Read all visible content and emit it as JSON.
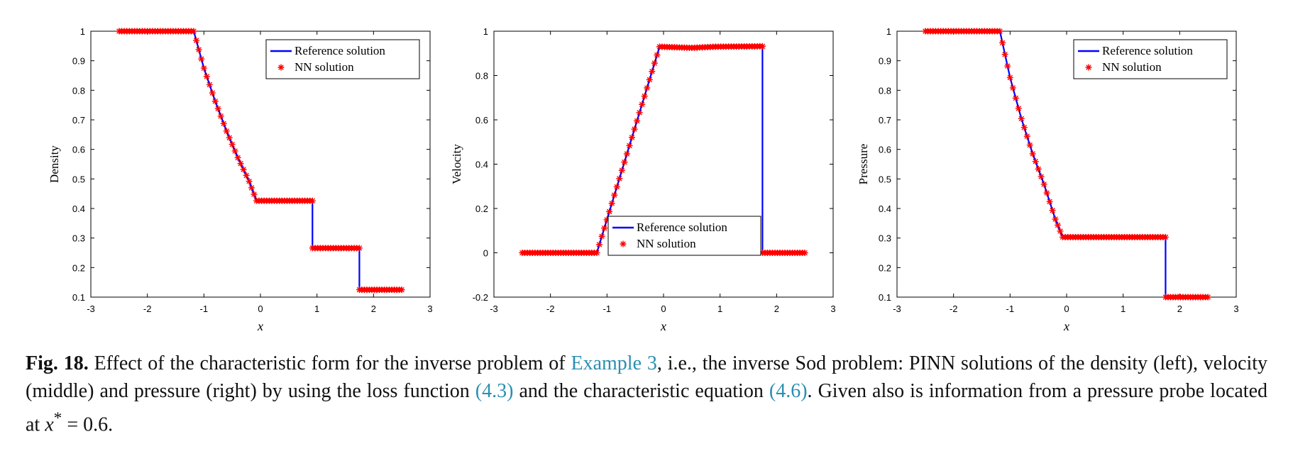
{
  "chart_data": [
    {
      "type": "line",
      "panel": "left",
      "title": "",
      "xlabel": "x",
      "ylabel": "Density",
      "xlim": [
        -3,
        3
      ],
      "ylim": [
        0.1,
        1
      ],
      "xticks": [
        "-3",
        "-2",
        "-1",
        "0",
        "1",
        "2",
        "3"
      ],
      "yticks": [
        "0.1",
        "0.2",
        "0.3",
        "0.4",
        "0.5",
        "0.6",
        "0.7",
        "0.8",
        "0.9",
        "1"
      ],
      "legend": {
        "position": "top-right",
        "entries": [
          "Reference  solution",
          "NN  solution"
        ]
      },
      "series": [
        {
          "name": "Reference  solution",
          "style": "line",
          "color": "#0000ff",
          "x": [
            -2.5,
            -1.18,
            -1.0,
            -0.8,
            -0.6,
            -0.4,
            -0.2,
            -0.07,
            0.92,
            0.92,
            1.75,
            1.75,
            2.5
          ],
          "y": [
            1.0,
            1.0,
            0.875,
            0.763,
            0.662,
            0.572,
            0.492,
            0.426,
            0.426,
            0.266,
            0.266,
            0.125,
            0.125
          ]
        },
        {
          "name": "NN  solution",
          "style": "markers",
          "marker": "*",
          "color": "#ff0000",
          "x": [
            -2.5,
            -1.18,
            -1.0,
            -0.8,
            -0.6,
            -0.4,
            -0.2,
            -0.07,
            0.92,
            0.92,
            1.75,
            1.75,
            2.5
          ],
          "y": [
            1.0,
            1.0,
            0.875,
            0.763,
            0.662,
            0.572,
            0.492,
            0.426,
            0.426,
            0.266,
            0.266,
            0.125,
            0.125
          ]
        }
      ]
    },
    {
      "type": "line",
      "panel": "middle",
      "title": "",
      "xlabel": "x",
      "ylabel": "Velocity",
      "xlim": [
        -3,
        3
      ],
      "ylim": [
        -0.2,
        1
      ],
      "xticks": [
        "-3",
        "-2",
        "-1",
        "0",
        "1",
        "2",
        "3"
      ],
      "yticks": [
        "-0.2",
        "0",
        "0.2",
        "0.4",
        "0.6",
        "0.8",
        "1"
      ],
      "legend": {
        "position": "bottom-right",
        "entries": [
          "Reference  solution",
          "NN  solution"
        ]
      },
      "series": [
        {
          "name": "Reference  solution",
          "style": "line",
          "color": "#0000ff",
          "x": [
            -2.5,
            -1.18,
            -0.07,
            0.5,
            0.92,
            1.75,
            1.75,
            2.5
          ],
          "y": [
            0.0,
            0.0,
            0.93,
            0.925,
            0.93,
            0.932,
            0.0,
            0.0
          ]
        },
        {
          "name": "NN  solution",
          "style": "markers",
          "marker": "*",
          "color": "#ff0000",
          "x": [
            -2.5,
            -1.18,
            -0.07,
            0.5,
            0.92,
            1.75,
            1.75,
            2.5
          ],
          "y": [
            0.0,
            0.0,
            0.93,
            0.925,
            0.93,
            0.932,
            0.0,
            0.0
          ]
        }
      ]
    },
    {
      "type": "line",
      "panel": "right",
      "title": "",
      "xlabel": "x",
      "ylabel": "Pressure",
      "xlim": [
        -3,
        3
      ],
      "ylim": [
        0.1,
        1
      ],
      "xticks": [
        "-3",
        "-2",
        "-1",
        "0",
        "1",
        "2",
        "3"
      ],
      "yticks": [
        "0.1",
        "0.2",
        "0.3",
        "0.4",
        "0.5",
        "0.6",
        "0.7",
        "0.8",
        "0.9",
        "1"
      ],
      "legend": {
        "position": "top-right",
        "entries": [
          "Reference  solution",
          "NN  solution"
        ]
      },
      "series": [
        {
          "name": "Reference  solution",
          "style": "line",
          "color": "#0000ff",
          "x": [
            -2.5,
            -1.18,
            -1.0,
            -0.8,
            -0.6,
            -0.4,
            -0.2,
            -0.07,
            1.75,
            1.75,
            2.5
          ],
          "y": [
            1.0,
            1.0,
            0.843,
            0.704,
            0.585,
            0.482,
            0.364,
            0.303,
            0.303,
            0.1,
            0.1
          ]
        },
        {
          "name": "NN  solution",
          "style": "markers",
          "marker": "*",
          "color": "#ff0000",
          "x": [
            -2.5,
            -1.18,
            -1.0,
            -0.8,
            -0.6,
            -0.4,
            -0.2,
            -0.07,
            1.75,
            1.75,
            2.5
          ],
          "y": [
            1.0,
            1.0,
            0.843,
            0.704,
            0.585,
            0.482,
            0.364,
            0.303,
            0.303,
            0.1,
            0.1
          ]
        }
      ]
    }
  ],
  "caption": {
    "label": "Fig. 18.",
    "part1": " Effect of the characteristic form for the inverse problem of ",
    "ref_example": "Example 3",
    "part2": ", i.e., the inverse Sod problem: PINN solutions of the density (left), velocity (middle) and pressure (right) by using the loss function ",
    "ref_loss": "(4.3)",
    "part3": " and the characteristic equation ",
    "ref_char": "(4.6)",
    "part4": ". Given also is information from a pressure probe located at ",
    "math_var": "x",
    "math_sup": "*",
    "math_rest": " = 0.6."
  }
}
